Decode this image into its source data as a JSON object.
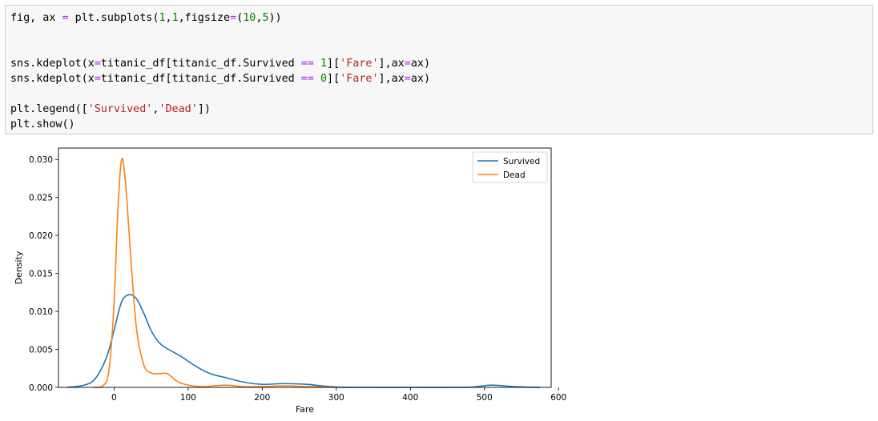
{
  "code": {
    "lines": [
      [
        {
          "t": "fig, ax "
        },
        {
          "t": "=",
          "c": "op"
        },
        {
          "t": " plt.subplots("
        },
        {
          "t": "1",
          "c": "num"
        },
        {
          "t": ","
        },
        {
          "t": "1",
          "c": "num"
        },
        {
          "t": ",figsize"
        },
        {
          "t": "=",
          "c": "op"
        },
        {
          "t": "("
        },
        {
          "t": "10",
          "c": "num"
        },
        {
          "t": ","
        },
        {
          "t": "5",
          "c": "num"
        },
        {
          "t": "))"
        }
      ],
      [],
      [],
      [
        {
          "t": "sns.kdeplot(x"
        },
        {
          "t": "=",
          "c": "op"
        },
        {
          "t": "titanic_df[titanic_df.Survived "
        },
        {
          "t": "==",
          "c": "op"
        },
        {
          "t": " "
        },
        {
          "t": "1",
          "c": "num"
        },
        {
          "t": "]["
        },
        {
          "t": "'Fare'",
          "c": "str"
        },
        {
          "t": "],ax"
        },
        {
          "t": "=",
          "c": "op"
        },
        {
          "t": "ax)"
        }
      ],
      [
        {
          "t": "sns.kdeplot(x"
        },
        {
          "t": "=",
          "c": "op"
        },
        {
          "t": "titanic_df[titanic_df.Survived "
        },
        {
          "t": "==",
          "c": "op"
        },
        {
          "t": " "
        },
        {
          "t": "0",
          "c": "num"
        },
        {
          "t": "]["
        },
        {
          "t": "'Fare'",
          "c": "str"
        },
        {
          "t": "],ax"
        },
        {
          "t": "=",
          "c": "op"
        },
        {
          "t": "ax)"
        }
      ],
      [],
      [
        {
          "t": "plt.legend(["
        },
        {
          "t": "'Survived'",
          "c": "str"
        },
        {
          "t": ","
        },
        {
          "t": "'Dead'",
          "c": "str"
        },
        {
          "t": "])"
        }
      ],
      [
        {
          "t": "plt.show()"
        }
      ]
    ]
  },
  "chart_data": {
    "type": "line",
    "title": "",
    "xlabel": "Fare",
    "ylabel": "Density",
    "xlim": [
      -75,
      590
    ],
    "ylim": [
      0,
      0.0315
    ],
    "xticks": [
      0,
      100,
      200,
      300,
      400,
      500,
      600
    ],
    "yticks": [
      0.0,
      0.005,
      0.01,
      0.015,
      0.02,
      0.025,
      0.03
    ],
    "xtick_labels": [
      "0",
      "100",
      "200",
      "300",
      "400",
      "500",
      "600"
    ],
    "ytick_labels": [
      "0.000",
      "0.005",
      "0.010",
      "0.015",
      "0.020",
      "0.025",
      "0.030"
    ],
    "grid": false,
    "legend_position": "top-right",
    "series": [
      {
        "name": "Survived",
        "color": "#1f77b4",
        "points": [
          [
            -63,
            0
          ],
          [
            -40,
            0.0003
          ],
          [
            -25,
            0.0012
          ],
          [
            -10,
            0.004
          ],
          [
            0,
            0.0075
          ],
          [
            10,
            0.0112
          ],
          [
            20,
            0.0122
          ],
          [
            30,
            0.0117
          ],
          [
            40,
            0.0098
          ],
          [
            50,
            0.0075
          ],
          [
            60,
            0.006
          ],
          [
            70,
            0.0052
          ],
          [
            90,
            0.0041
          ],
          [
            110,
            0.0028
          ],
          [
            130,
            0.0018
          ],
          [
            150,
            0.0013
          ],
          [
            175,
            0.0007
          ],
          [
            200,
            0.0004
          ],
          [
            230,
            0.0005
          ],
          [
            260,
            0.0004
          ],
          [
            280,
            0.0002
          ],
          [
            300,
            5e-05
          ],
          [
            330,
            0
          ],
          [
            400,
            0
          ],
          [
            470,
            0
          ],
          [
            490,
            0.0001
          ],
          [
            510,
            0.0003
          ],
          [
            540,
            0.0001
          ],
          [
            575,
            0
          ]
        ]
      },
      {
        "name": "Dead",
        "color": "#ff7f0e",
        "points": [
          [
            -28,
            0
          ],
          [
            -15,
            0.0002
          ],
          [
            -7,
            0.0022
          ],
          [
            0,
            0.011
          ],
          [
            5,
            0.023
          ],
          [
            10,
            0.0299
          ],
          [
            15,
            0.0275
          ],
          [
            22,
            0.018
          ],
          [
            30,
            0.008
          ],
          [
            40,
            0.003
          ],
          [
            50,
            0.0019
          ],
          [
            60,
            0.0018
          ],
          [
            72,
            0.0018
          ],
          [
            85,
            0.0008
          ],
          [
            100,
            0.0003
          ],
          [
            120,
            0.0001
          ],
          [
            150,
            0.0003
          ],
          [
            175,
            0.0001
          ],
          [
            200,
            0.0001
          ],
          [
            230,
            0.0002
          ],
          [
            260,
            0.0001
          ],
          [
            285,
            5e-05
          ],
          [
            300,
            0
          ]
        ]
      }
    ]
  }
}
